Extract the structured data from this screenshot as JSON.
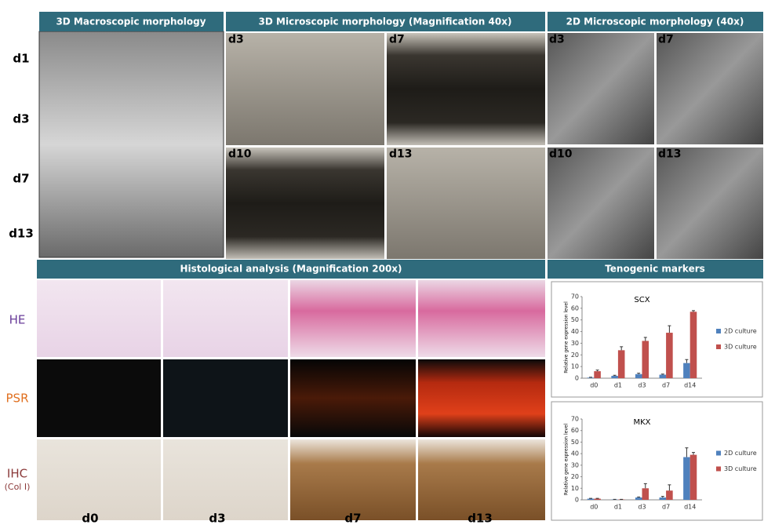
{
  "macro": {
    "title": "3D Macroscopic morphology",
    "rows": [
      "d1",
      "d3",
      "d7",
      "d13"
    ]
  },
  "micro3d": {
    "title": "3D Microscopic morphology (Magnification 40x)",
    "labels": [
      "d3",
      "d7",
      "d10",
      "d13"
    ]
  },
  "micro2d": {
    "title": "2D Microscopic morphology (40x)",
    "labels": [
      "d3",
      "d7",
      "d10",
      "d13"
    ]
  },
  "histology": {
    "title": "Histological analysis (Magnification 200x)",
    "rows": [
      "HE",
      "PSR",
      "IHC"
    ],
    "ihc_sub": "(Col I)",
    "columns": [
      "d0",
      "d3",
      "d7",
      "d13"
    ]
  },
  "markers": {
    "title": "Tenogenic markers"
  },
  "chart_data": [
    {
      "type": "bar",
      "title": "SCX",
      "y_label": "Relative gene expression level",
      "categories": [
        "d0",
        "d1",
        "d3",
        "d7",
        "d14"
      ],
      "series": [
        {
          "name": "2D culture",
          "color": "#4f81bd",
          "values": [
            0.5,
            2,
            3.5,
            3,
            13
          ],
          "errors": [
            0.3,
            0.5,
            0.8,
            0.5,
            3
          ]
        },
        {
          "name": "3D culture",
          "color": "#c0504d",
          "values": [
            6,
            24,
            32,
            39,
            57
          ],
          "errors": [
            1,
            3,
            3,
            6,
            1
          ]
        }
      ],
      "ylim": [
        0,
        70
      ],
      "yticks": [
        0,
        10,
        20,
        30,
        40,
        50,
        60,
        70
      ],
      "grid": false,
      "legend": "right"
    },
    {
      "type": "bar",
      "title": "MKX",
      "y_label": "Relative gene expression level",
      "categories": [
        "d0",
        "d1",
        "d3",
        "d7",
        "d14"
      ],
      "series": [
        {
          "name": "2D culture",
          "color": "#4f81bd",
          "values": [
            1,
            0.3,
            2,
            2,
            37
          ],
          "errors": [
            0.3,
            0.1,
            0.5,
            1,
            8
          ]
        },
        {
          "name": "3D culture",
          "color": "#c0504d",
          "values": [
            1,
            0.3,
            10,
            8,
            39
          ],
          "errors": [
            0.3,
            0.1,
            4,
            5,
            2
          ]
        }
      ],
      "ylim": [
        0,
        70
      ],
      "yticks": [
        0,
        10,
        20,
        30,
        40,
        50,
        60,
        70
      ],
      "grid": false,
      "legend": "right"
    }
  ]
}
